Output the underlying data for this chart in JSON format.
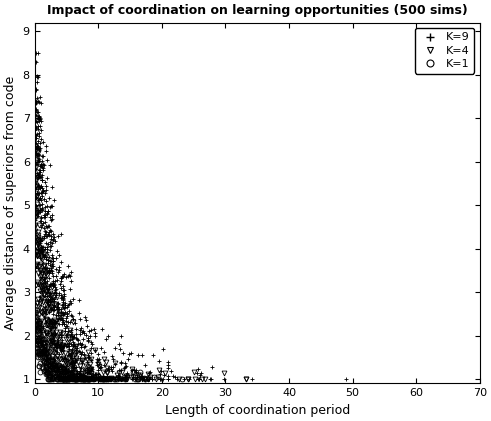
{
  "title": "Impact of coordination on learning opportunities (500 sims)",
  "xlabel": "Length of coordination period",
  "ylabel": "Average distance of superiors from code",
  "xlim": [
    0,
    70
  ],
  "ylim": [
    0.9,
    9.2
  ],
  "yticks": [
    1,
    2,
    3,
    4,
    5,
    6,
    7,
    8,
    9
  ],
  "xticks": [
    0,
    10,
    20,
    30,
    40,
    50,
    60,
    70
  ],
  "background_color": "#ffffff",
  "marker_color": "black",
  "title_fontsize": 9,
  "label_fontsize": 9,
  "tick_fontsize": 8,
  "legend_fontsize": 8
}
